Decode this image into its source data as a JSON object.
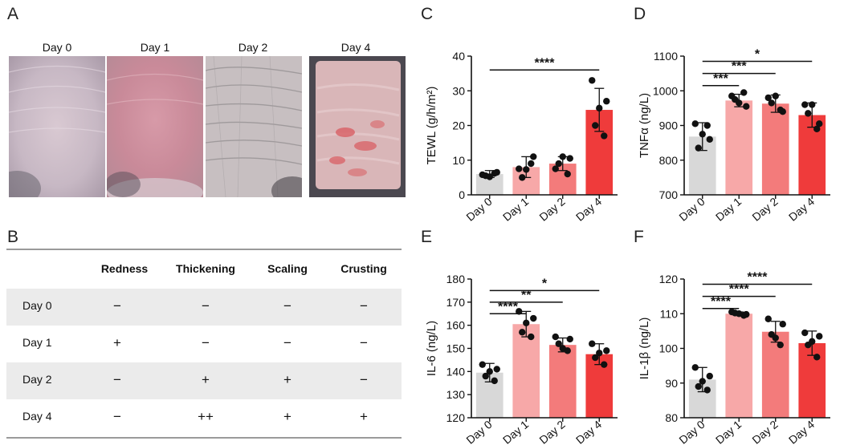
{
  "panel_letters": {
    "a": "A",
    "b": "B",
    "c": "C",
    "d": "D",
    "e": "E",
    "f": "F"
  },
  "photos": [
    {
      "label": "Day 0",
      "severity": 0
    },
    {
      "label": "Day 1",
      "severity": 1
    },
    {
      "label": "Day 2",
      "severity": 2
    },
    {
      "label": "Day 4",
      "severity": 3
    }
  ],
  "table": {
    "columns": [
      "Redness",
      "Thickening",
      "Scaling",
      "Crusting"
    ],
    "rows": [
      {
        "label": "Day 0",
        "cells": [
          "−",
          "−",
          "−",
          "−"
        ]
      },
      {
        "label": "Day 1",
        "cells": [
          "+",
          "−",
          "−",
          "−"
        ]
      },
      {
        "label": "Day 2",
        "cells": [
          "−",
          "+",
          "+",
          "−"
        ]
      },
      {
        "label": "Day 4",
        "cells": [
          "−",
          "++",
          "+",
          "+"
        ]
      }
    ]
  },
  "colors": {
    "day0": "#d8d8d8",
    "day1": "#f7a8a8",
    "day2": "#f37b7b",
    "day4": "#ef3b3b",
    "dot": "#111111",
    "line": "#111111"
  },
  "chart_data": [
    {
      "id": "C",
      "type": "bar",
      "title": "",
      "ylabel": "TEWL (g/h/m²)",
      "xlabel": "",
      "ylim": [
        0,
        40
      ],
      "ticks": [
        0,
        10,
        20,
        30,
        40
      ],
      "categories": [
        "Day 0",
        "Day 1",
        "Day 2",
        "Day 4"
      ],
      "values": [
        6,
        8,
        9,
        24.5
      ],
      "errors": [
        1,
        3,
        2,
        6.2
      ],
      "points": [
        [
          5.8,
          6.5,
          5.5,
          6.2,
          5.2
        ],
        [
          7.5,
          11,
          5,
          9,
          7.3
        ],
        [
          7.5,
          10.5,
          9,
          6,
          11
        ],
        [
          33,
          27,
          20,
          17,
          25
        ]
      ],
      "brackets": [
        {
          "from": 0,
          "to": 3,
          "y": 36,
          "label": "****"
        }
      ]
    },
    {
      "id": "D",
      "type": "bar",
      "title": "",
      "ylabel": "TNFα (ng/L)",
      "xlabel": "",
      "ylim": [
        700,
        1100
      ],
      "ticks": [
        700,
        800,
        900,
        1000,
        1100
      ],
      "categories": [
        "Day 0",
        "Day 1",
        "Day 2",
        "Day 4"
      ],
      "values": [
        868,
        972,
        963,
        930
      ],
      "errors": [
        40,
        18,
        25,
        35
      ],
      "points": [
        [
          905,
          860,
          835,
          900,
          875
        ],
        [
          985,
          955,
          975,
          995,
          965
        ],
        [
          980,
          940,
          965,
          945,
          985
        ],
        [
          960,
          905,
          935,
          890,
          960
        ]
      ],
      "brackets": [
        {
          "from": 0,
          "to": 1,
          "y": 1015,
          "label": "***"
        },
        {
          "from": 0,
          "to": 2,
          "y": 1050,
          "label": "***"
        },
        {
          "from": 0,
          "to": 3,
          "y": 1085,
          "label": "*"
        }
      ]
    },
    {
      "id": "E",
      "type": "bar",
      "title": "",
      "ylabel": "IL-6 (ng/L)",
      "xlabel": "",
      "ylim": [
        120,
        180
      ],
      "ticks": [
        120,
        130,
        140,
        150,
        160,
        170,
        180
      ],
      "categories": [
        "Day 0",
        "Day 1",
        "Day 2",
        "Day 4"
      ],
      "values": [
        139.5,
        160.5,
        151.5,
        147.5
      ],
      "errors": [
        4,
        5.5,
        3,
        4.5
      ],
      "points": [
        [
          143,
          141,
          138,
          136,
          140
        ],
        [
          166,
          163,
          157,
          155,
          161
        ],
        [
          155,
          154,
          152,
          149,
          150
        ],
        [
          152,
          149,
          146,
          143,
          148
        ]
      ],
      "brackets": [
        {
          "from": 0,
          "to": 1,
          "y": 165,
          "label": "****"
        },
        {
          "from": 0,
          "to": 2,
          "y": 170,
          "label": "**"
        },
        {
          "from": 0,
          "to": 3,
          "y": 175,
          "label": "*"
        }
      ]
    },
    {
      "id": "F",
      "type": "bar",
      "title": "",
      "ylabel": "IL-1β (ng/L)",
      "xlabel": "",
      "ylim": [
        80,
        120
      ],
      "ticks": [
        80,
        90,
        100,
        110,
        120
      ],
      "categories": [
        "Day 0",
        "Day 1",
        "Day 2",
        "Day 4"
      ],
      "values": [
        91,
        110,
        104.8,
        101.5
      ],
      "errors": [
        3.5,
        0.5,
        3,
        3.5
      ],
      "points": [
        [
          94.5,
          92,
          89,
          88,
          90.5
        ],
        [
          110.5,
          109.8,
          110.2,
          109.5,
          110
        ],
        [
          108.5,
          107,
          104,
          101,
          103
        ],
        [
          104.5,
          103.5,
          101,
          97.5,
          102
        ]
      ],
      "brackets": [
        {
          "from": 0,
          "to": 1,
          "y": 111.5,
          "label": "****"
        },
        {
          "from": 0,
          "to": 2,
          "y": 115,
          "label": "****"
        },
        {
          "from": 0,
          "to": 3,
          "y": 118.5,
          "label": "****"
        }
      ]
    }
  ]
}
